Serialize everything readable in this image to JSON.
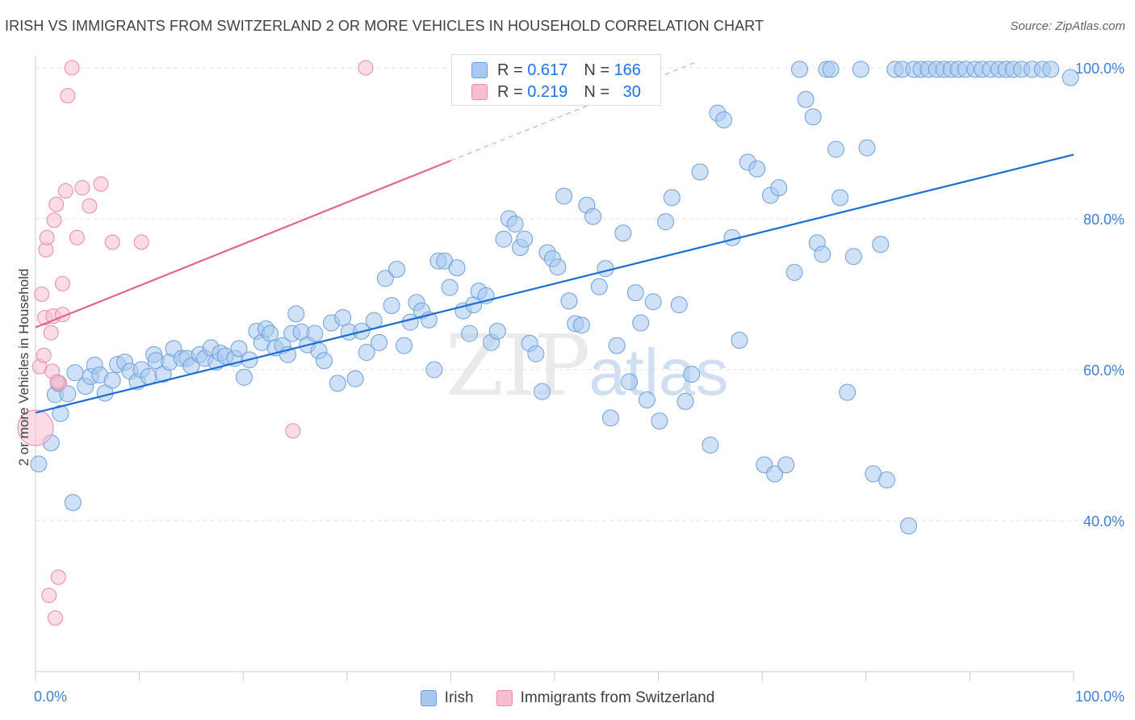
{
  "header": {
    "title": "IRISH VS IMMIGRANTS FROM SWITZERLAND 2 OR MORE VEHICLES IN HOUSEHOLD CORRELATION CHART",
    "source": "Source: ZipAtlas.com"
  },
  "watermark": {
    "zip": "ZIP",
    "atlas": "atlas"
  },
  "legend": {
    "r_label": "R =",
    "n_label": "N =",
    "series": [
      {
        "r": "0.617",
        "n": "166"
      },
      {
        "r": "0.219",
        "n": "30"
      }
    ]
  },
  "colors": {
    "irish_fill": "#a8c8f0",
    "irish_stroke": "#6d9edc",
    "irish_line": "#1a6dd4",
    "swiss_fill": "#f7bed0",
    "swiss_stroke": "#e98aa8",
    "swiss_line": "#e3648e",
    "tick_label": "#3f7fd6",
    "grid": "#dde1e6"
  },
  "chart_data": {
    "type": "scatter",
    "title": "IRISH VS IMMIGRANTS FROM SWITZERLAND 2 OR MORE VEHICLES IN HOUSEHOLD CORRELATION CHART",
    "xlabel": "",
    "ylabel": "2 or more Vehicles in Household",
    "xlim": [
      0,
      100
    ],
    "ylim": [
      20.0,
      101.5
    ],
    "y_ticks": [
      40.0,
      60.0,
      80.0,
      100.0
    ],
    "y_tick_labels": [
      "40.0%",
      "60.0%",
      "80.0%",
      "100.0%"
    ],
    "x_tick_labels": [
      "0.0%",
      "100.0%"
    ],
    "grid": true,
    "legend_position": "top-center",
    "series": [
      {
        "name": "Irish",
        "x": [
          0.3,
          1.5,
          1.9,
          2.2,
          2.4,
          3.1,
          3.6,
          3.8,
          4.8,
          5.3,
          5.7,
          6.2,
          6.7,
          7.4,
          7.9,
          8.6,
          9.1,
          9.8,
          10.2,
          10.9,
          11.4,
          11.6,
          12.3,
          12.9,
          13.3,
          14.1,
          14.6,
          15.0,
          15.8,
          16.3,
          16.9,
          17.4,
          17.8,
          18.3,
          19.2,
          19.6,
          20.1,
          20.6,
          21.3,
          21.8,
          22.2,
          22.6,
          23.1,
          23.8,
          24.3,
          24.7,
          25.1,
          25.6,
          26.2,
          26.9,
          27.3,
          27.8,
          28.5,
          29.1,
          29.6,
          30.2,
          30.8,
          31.4,
          31.9,
          32.6,
          33.1,
          33.7,
          34.3,
          34.8,
          35.5,
          36.1,
          36.7,
          37.2,
          37.9,
          38.4,
          38.8,
          39.4,
          39.9,
          40.6,
          41.2,
          41.8,
          42.2,
          42.7,
          43.4,
          43.9,
          44.5,
          45.1,
          45.6,
          46.2,
          46.7,
          47.1,
          47.6,
          48.2,
          48.8,
          49.3,
          49.8,
          50.3,
          50.9,
          51.4,
          52.0,
          52.6,
          53.1,
          53.7,
          54.3,
          54.9,
          55.4,
          56.0,
          56.6,
          57.2,
          57.8,
          58.3,
          58.9,
          59.5,
          60.1,
          60.7,
          61.3,
          62.0,
          62.6,
          63.2,
          64.0,
          65.0,
          65.7,
          66.3,
          67.1,
          67.8,
          68.6,
          69.5,
          70.2,
          70.8,
          71.2,
          71.6,
          72.3,
          73.1,
          73.6,
          74.2,
          74.9,
          75.3,
          75.8,
          76.2,
          76.6,
          77.1,
          77.5,
          78.2,
          78.8,
          79.5,
          80.1,
          80.7,
          81.4,
          82.0,
          82.8,
          83.5,
          84.1,
          84.6,
          85.3,
          86.0,
          86.8,
          87.5,
          88.2,
          88.9,
          89.6,
          90.5,
          91.2,
          92.0,
          92.8,
          93.5,
          94.2,
          95.0,
          96.0,
          97.0,
          97.8,
          99.7
        ],
        "y": [
          47.5,
          50.3,
          56.7,
          58.2,
          54.2,
          56.8,
          42.4,
          59.6,
          57.8,
          59.1,
          60.6,
          59.3,
          56.9,
          58.6,
          60.7,
          61.0,
          59.8,
          58.4,
          60.0,
          59.1,
          62.0,
          61.2,
          59.4,
          61.0,
          62.8,
          61.5,
          61.5,
          60.5,
          62.0,
          61.5,
          62.9,
          61.0,
          62.2,
          61.8,
          61.5,
          62.8,
          59.0,
          61.3,
          65.1,
          63.6,
          65.4,
          64.8,
          62.9,
          63.2,
          62.0,
          64.8,
          67.4,
          65.0,
          63.3,
          64.8,
          62.5,
          61.2,
          66.2,
          58.2,
          66.9,
          65.0,
          58.8,
          65.1,
          62.3,
          66.5,
          63.6,
          72.1,
          68.5,
          73.3,
          63.2,
          66.3,
          68.9,
          67.8,
          66.6,
          60.0,
          74.4,
          74.4,
          70.9,
          73.5,
          67.8,
          64.8,
          68.6,
          70.4,
          69.8,
          63.6,
          65.1,
          77.3,
          80.0,
          79.3,
          76.2,
          77.3,
          63.5,
          62.1,
          57.1,
          75.5,
          74.7,
          73.6,
          83.0,
          69.1,
          66.1,
          65.9,
          81.8,
          80.3,
          71.0,
          73.4,
          53.6,
          63.2,
          78.1,
          58.4,
          70.2,
          66.2,
          56.0,
          69.0,
          53.2,
          79.6,
          82.8,
          68.6,
          55.8,
          59.4,
          86.2,
          50.0,
          94.0,
          93.1,
          77.5,
          63.9,
          87.5,
          86.6,
          47.4,
          83.1,
          46.2,
          84.1,
          47.4,
          72.9,
          99.8,
          95.8,
          93.5,
          76.8,
          75.3,
          99.8,
          99.8,
          89.2,
          82.8,
          57.0,
          75.0,
          99.8,
          89.4,
          46.2,
          76.6,
          45.4,
          99.8,
          99.8,
          39.3,
          99.8,
          99.8,
          99.8,
          99.8,
          99.8,
          99.8,
          99.8,
          99.8,
          99.8,
          99.8,
          99.8,
          99.8,
          99.8,
          99.8,
          99.8,
          99.8,
          99.8,
          99.8,
          98.7
        ],
        "r": [
          10,
          10,
          10,
          10,
          10,
          10,
          10,
          10,
          10,
          10,
          10,
          10,
          10,
          10,
          10,
          10,
          10,
          10,
          10,
          10,
          10,
          10,
          10,
          10,
          10,
          10,
          10,
          10,
          10,
          10,
          10,
          10,
          10,
          10,
          10,
          10,
          10,
          10,
          10,
          10,
          10,
          10,
          10,
          10,
          10,
          10,
          10,
          10,
          10,
          10,
          10,
          10,
          10,
          10,
          10,
          10,
          10,
          10,
          10,
          10,
          10,
          10,
          10,
          10,
          10,
          10,
          10,
          10,
          10,
          10,
          10,
          10,
          10,
          10,
          10,
          10,
          10,
          10,
          10,
          10,
          10,
          10,
          10,
          10,
          10,
          10,
          10,
          10,
          10,
          10,
          10,
          10,
          10,
          10,
          10,
          10,
          10,
          10,
          10,
          10,
          10,
          10,
          10,
          10,
          10,
          10,
          10,
          10,
          10,
          10,
          10,
          10,
          10,
          10,
          10,
          10,
          10,
          10,
          10,
          10,
          10,
          10,
          10,
          10,
          10,
          10,
          10,
          10,
          10,
          10,
          10,
          10,
          10,
          10,
          10,
          10,
          10,
          10,
          10,
          10,
          10,
          10,
          10,
          10,
          10,
          10,
          10,
          10,
          10,
          10,
          10,
          10,
          10,
          10,
          10,
          10,
          10,
          10,
          10,
          10,
          10,
          10,
          10,
          10,
          10,
          10
        ],
        "trend": {
          "x": [
            0,
            100
          ],
          "y": [
            54.3,
            88.5
          ]
        }
      },
      {
        "name": "Immigrants from Switzerland",
        "x": [
          0.0,
          0.4,
          0.6,
          0.8,
          0.9,
          1.0,
          1.1,
          1.3,
          1.5,
          1.8,
          2.0,
          2.3,
          2.6,
          2.9,
          3.1,
          3.5,
          4.0,
          4.5,
          5.2,
          6.3,
          7.4,
          10.2,
          24.8,
          31.8,
          1.7,
          1.9,
          2.2,
          2.6,
          1.6,
          2.1
        ],
        "y": [
          52.3,
          60.4,
          70.0,
          61.9,
          66.9,
          75.9,
          77.5,
          30.1,
          64.9,
          79.8,
          81.9,
          58.2,
          71.4,
          83.7,
          96.3,
          100.0,
          77.5,
          84.1,
          81.7,
          84.6,
          76.9,
          76.9,
          51.9,
          100.0,
          67.1,
          27.1,
          32.5,
          67.3,
          59.8,
          58.4
        ],
        "r": [
          22,
          9,
          9,
          9,
          9,
          9,
          9,
          9,
          9,
          9,
          9,
          9,
          9,
          9,
          9,
          9,
          9,
          9,
          9,
          9,
          9,
          9,
          9,
          9,
          9,
          9,
          9,
          9,
          9,
          9
        ],
        "trend": {
          "x": [
            0,
            40
          ],
          "y": [
            65.6,
            87.7
          ],
          "dashed_to": {
            "x": 63.7,
            "y": 100.8
          }
        }
      }
    ]
  },
  "bottom_legend": {
    "items": [
      "Irish",
      "Immigrants from Switzerland"
    ]
  }
}
